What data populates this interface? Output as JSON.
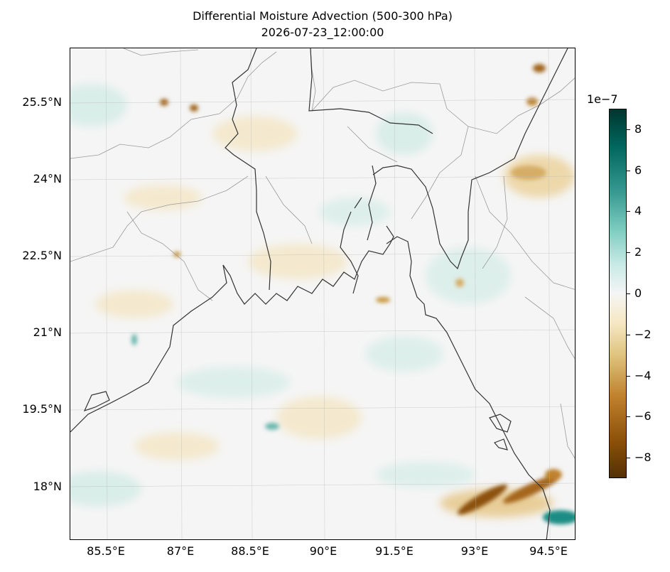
{
  "title": {
    "line1": "Differential Moisture Advection (500-300 hPa)",
    "line2": "2026-07-23_12:00:00"
  },
  "map": {
    "lat_labels": [
      "25.5°N",
      "24°N",
      "22.5°N",
      "21°N",
      "19.5°N",
      "18°N"
    ],
    "lon_labels": [
      "85.5°E",
      "87°E",
      "88.5°E",
      "90°E",
      "91.5°E",
      "93°E",
      "94.5°E"
    ],
    "colormap": "BrBG",
    "coastline_color": "#333333",
    "border_color": "#9a9a9a"
  },
  "colorbar": {
    "exponent_label": "1e−7",
    "ticks": [
      "8",
      "6",
      "4",
      "2",
      "0",
      "−2",
      "−4",
      "−6",
      "−8"
    ],
    "range": [
      -9,
      9
    ]
  }
}
